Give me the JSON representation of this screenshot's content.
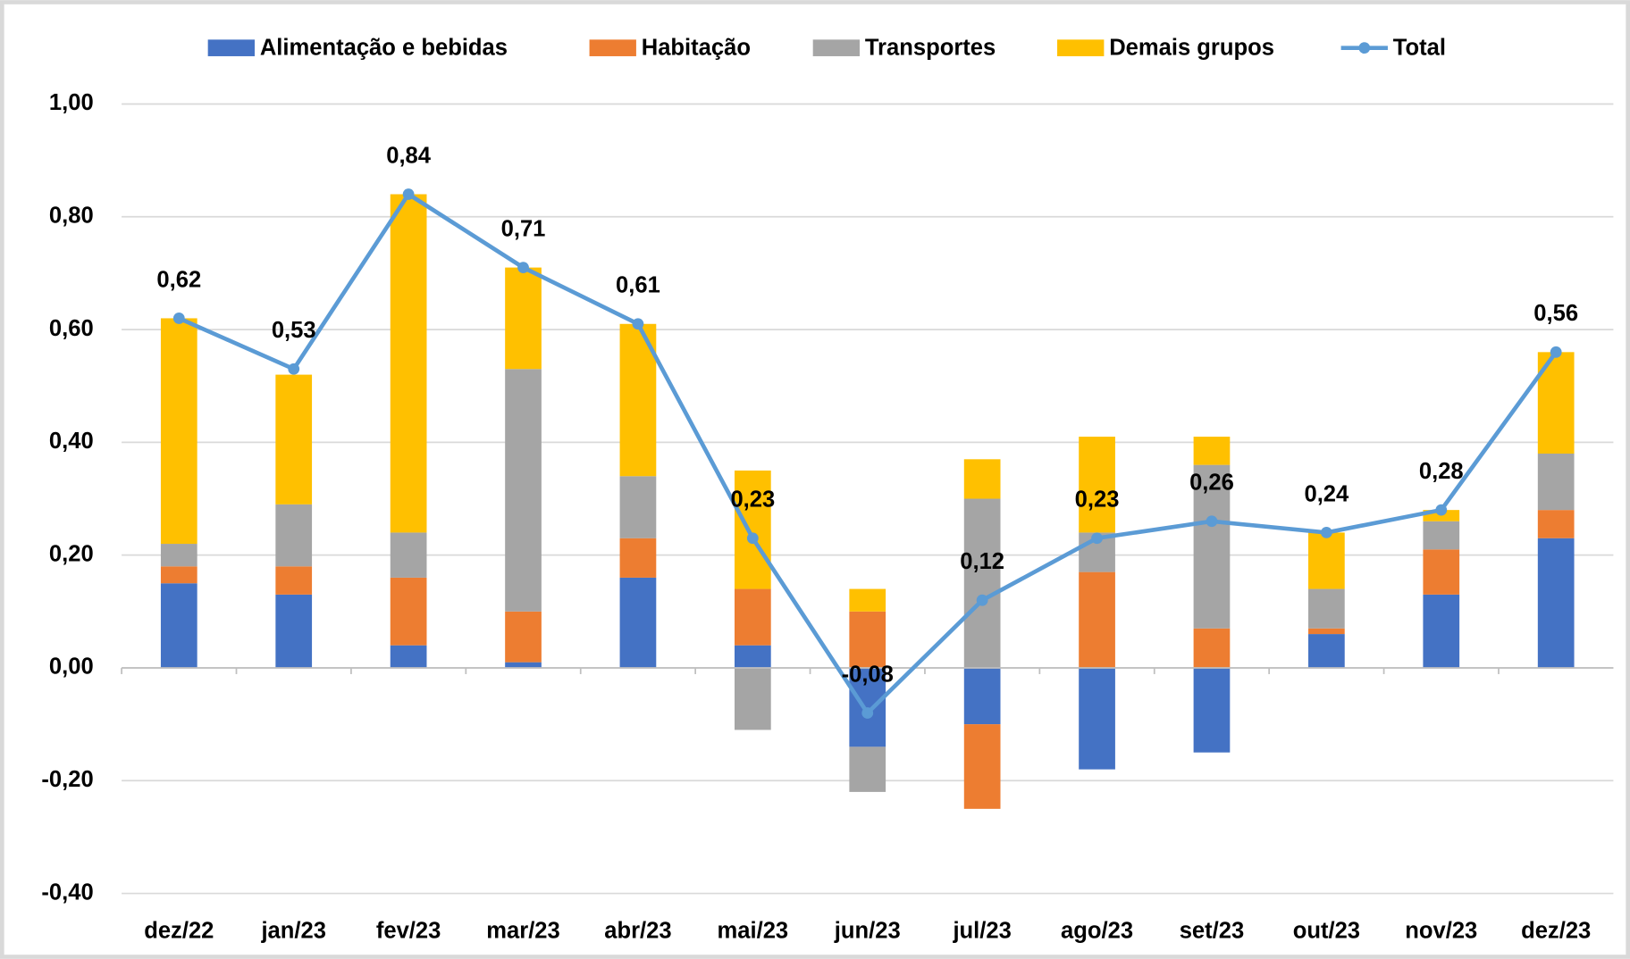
{
  "chart_data": {
    "type": "stacked-bar-line",
    "categories": [
      "dez/22",
      "jan/23",
      "fev/23",
      "mar/23",
      "abr/23",
      "mai/23",
      "jun/23",
      "jul/23",
      "ago/23",
      "set/23",
      "out/23",
      "nov/23",
      "dez/23"
    ],
    "series": [
      {
        "name": "Alimentação e bebidas",
        "color": "#4472c4",
        "kind": "bar",
        "values": [
          0.15,
          0.13,
          0.04,
          0.01,
          0.16,
          0.04,
          -0.14,
          -0.1,
          -0.18,
          -0.15,
          0.06,
          0.13,
          0.23
        ]
      },
      {
        "name": "Habitação",
        "color": "#ed7d31",
        "kind": "bar",
        "values": [
          0.03,
          0.05,
          0.12,
          0.09,
          0.07,
          0.1,
          0.1,
          -0.15,
          0.17,
          0.07,
          0.01,
          0.08,
          0.05
        ]
      },
      {
        "name": "Transportes",
        "color": "#a5a5a5",
        "kind": "bar",
        "values": [
          0.04,
          0.11,
          0.08,
          0.43,
          0.11,
          -0.11,
          -0.08,
          0.3,
          0.07,
          0.29,
          0.07,
          0.05,
          0.1
        ]
      },
      {
        "name": "Demais grupos",
        "color": "#ffc000",
        "kind": "bar",
        "values": [
          0.4,
          0.23,
          0.6,
          0.18,
          0.27,
          0.21,
          0.04,
          0.07,
          0.17,
          0.05,
          0.1,
          0.02,
          0.18
        ]
      },
      {
        "name": "Total",
        "color": "#5b9bd5",
        "kind": "line",
        "values": [
          0.62,
          0.53,
          0.84,
          0.71,
          0.61,
          0.23,
          -0.08,
          0.12,
          0.23,
          0.26,
          0.24,
          0.28,
          0.56
        ],
        "value_labels": [
          "0,62",
          "0,53",
          "0,84",
          "0,71",
          "0,61",
          "0,23",
          "-0,08",
          "0,12",
          "0,23",
          "0,26",
          "0,24",
          "0,28",
          "0,56"
        ]
      }
    ],
    "ylim": [
      -0.4,
      1.0
    ],
    "yticks": [
      {
        "value": -0.4,
        "label": "-0,40"
      },
      {
        "value": -0.2,
        "label": "-0,20"
      },
      {
        "value": 0,
        "label": "0,00"
      },
      {
        "value": 0.2,
        "label": "0,20"
      },
      {
        "value": 0.4,
        "label": "0,40"
      },
      {
        "value": 0.6,
        "label": "0,60"
      },
      {
        "value": 0.8,
        "label": "0,80"
      },
      {
        "value": 1.0,
        "label": "1,00"
      }
    ],
    "grid": true
  }
}
